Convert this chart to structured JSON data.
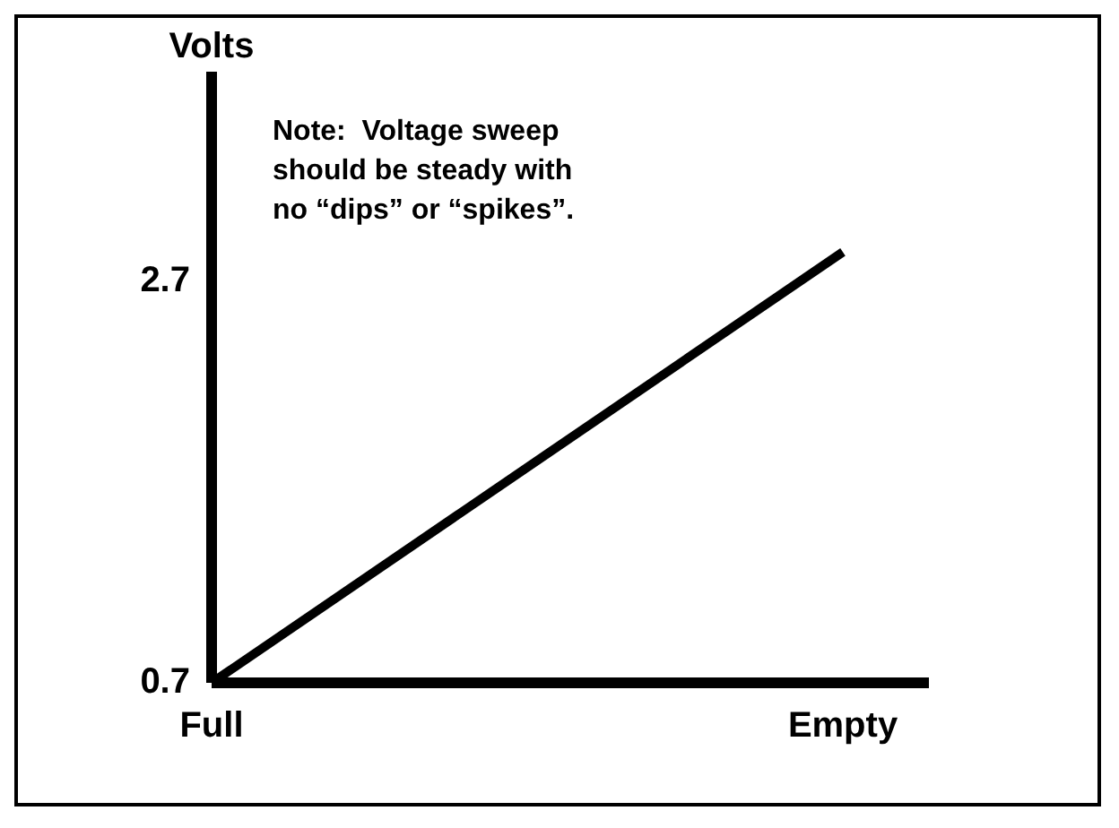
{
  "chart_data": {
    "type": "line",
    "ylabel": "Volts",
    "categories": [
      "Full",
      "Empty"
    ],
    "ylim": [
      0.7,
      3.75
    ],
    "yticks": [
      0.7,
      2.7
    ],
    "series": [
      {
        "values": [
          0.7,
          2.85
        ],
        "color": "#000000"
      }
    ],
    "annotations": [
      "Note:  Voltage sweep should be steady with no “dips” or “spikes”."
    ],
    "grid": false,
    "marker": "none",
    "line_style": "solid"
  }
}
